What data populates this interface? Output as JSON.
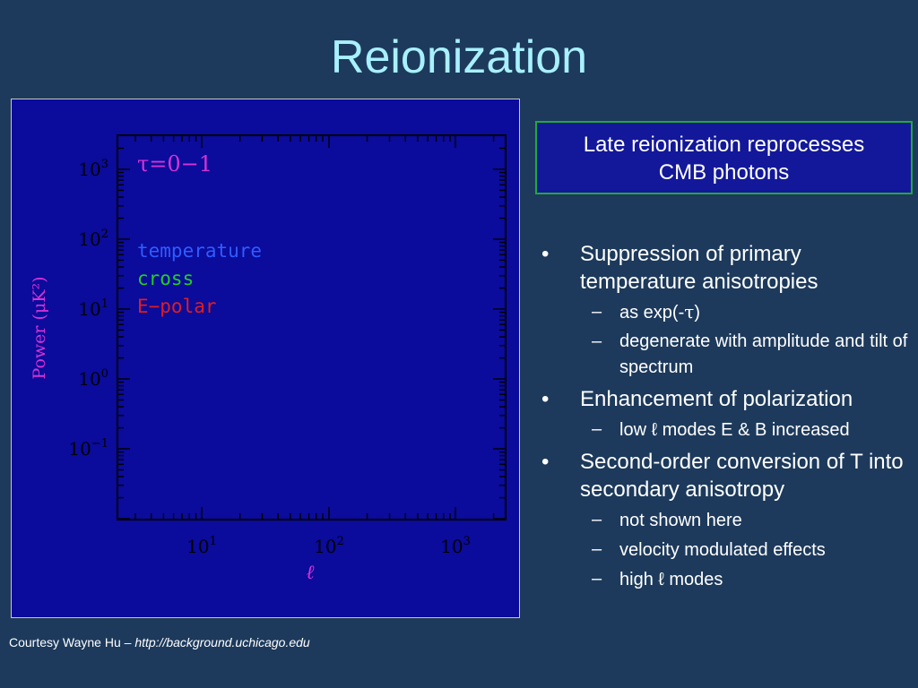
{
  "slide": {
    "title": "Reionization",
    "callout_line1": "Late reionization reprocesses",
    "callout_line2": "CMB photons"
  },
  "colors": {
    "background": "#1d3a5c",
    "title": "#a8f0ff",
    "plot_panel": "#0b0b9c",
    "callout_border": "#1faa3a",
    "temperature": "#2f5cff",
    "cross": "#22d022",
    "e_polar": "#e11d1d",
    "axis_label": "#d633d6"
  },
  "figure": {
    "tau_label": "τ=0−1",
    "legend": {
      "temperature": "temperature",
      "cross": "cross",
      "epolar": "E−polar"
    },
    "y_axis_label": "Power (μK²)",
    "x_axis_label": "ℓ",
    "y_ticks": [
      {
        "base": "10",
        "exp": "3"
      },
      {
        "base": "10",
        "exp": "2"
      },
      {
        "base": "10",
        "exp": "1"
      },
      {
        "base": "10",
        "exp": "0"
      },
      {
        "base": "10",
        "exp": "−1"
      }
    ],
    "x_ticks": [
      {
        "base": "10",
        "exp": "1"
      },
      {
        "base": "10",
        "exp": "2"
      },
      {
        "base": "10",
        "exp": "3"
      }
    ]
  },
  "bullets": [
    {
      "text": "Suppression of primary temperature anisotropies",
      "subs": [
        {
          "pre": "as exp(-",
          "sym": "τ",
          "post": ")"
        },
        {
          "pre": "degenerate with amplitude and tilt of spectrum",
          "sym": "",
          "post": ""
        }
      ]
    },
    {
      "text": "Enhancement of polarization",
      "subs": [
        {
          "pre": "low ℓ modes E & B increased",
          "sym": "",
          "post": ""
        }
      ]
    },
    {
      "text": "Second-order conversion of T into secondary anisotropy",
      "subs": [
        {
          "pre": "not shown here",
          "sym": "",
          "post": ""
        },
        {
          "pre": "velocity modulated effects",
          "sym": "",
          "post": ""
        },
        {
          "pre": "high ℓ modes",
          "sym": "",
          "post": ""
        }
      ]
    }
  ],
  "footer": {
    "credit": "Courtesy Wayne Hu – ",
    "url": "http://background.uchicago.edu"
  }
}
